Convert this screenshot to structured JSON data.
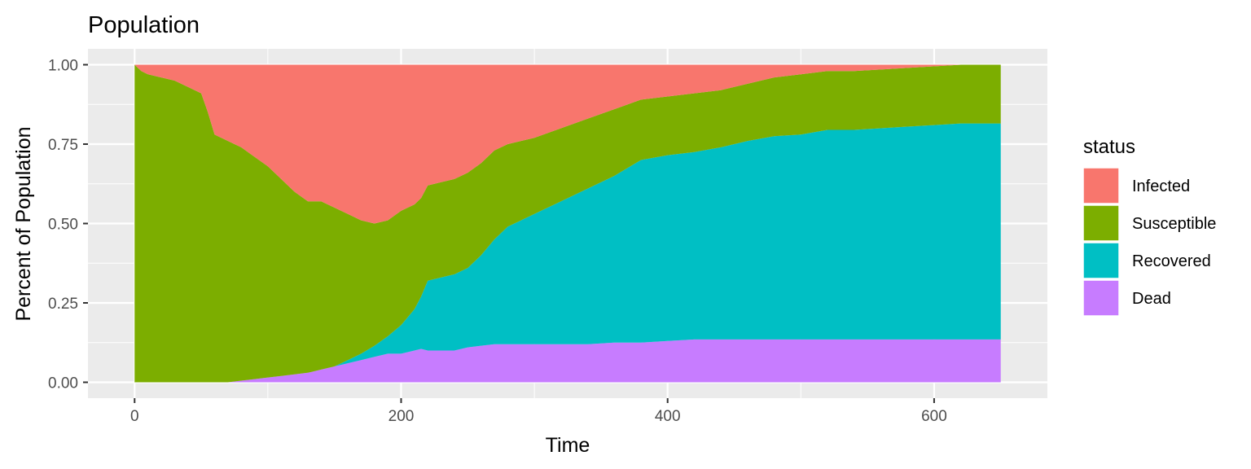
{
  "chart_data": {
    "type": "area",
    "stacked": "fill",
    "title": "Population",
    "xlabel": "Time",
    "ylabel": "Percent of Population",
    "xlim": [
      -35,
      685
    ],
    "ylim": [
      -0.05,
      1.05
    ],
    "x_ticks": [
      0,
      200,
      400,
      600
    ],
    "x_tick_labels": [
      "0",
      "200",
      "400",
      "600"
    ],
    "y_ticks": [
      0,
      0.25,
      0.5,
      0.75,
      1
    ],
    "y_tick_labels": [
      "0.00",
      "0.25",
      "0.50",
      "0.75",
      "1.00"
    ],
    "grid": true,
    "legend": {
      "title": "status",
      "position": "right"
    },
    "stack_order_bottom_to_top": [
      "Dead",
      "Recovered",
      "Susceptible",
      "Infected"
    ],
    "x": [
      0,
      5,
      10,
      20,
      30,
      40,
      50,
      55,
      60,
      70,
      80,
      90,
      100,
      110,
      120,
      130,
      140,
      150,
      160,
      170,
      180,
      190,
      200,
      210,
      215,
      220,
      230,
      240,
      250,
      260,
      270,
      280,
      290,
      300,
      320,
      340,
      360,
      380,
      400,
      420,
      440,
      460,
      480,
      500,
      520,
      540,
      560,
      580,
      600,
      620,
      650
    ],
    "series": [
      {
        "name": "Infected",
        "color": "#F8766D",
        "values": [
          0.0,
          0.02,
          0.03,
          0.04,
          0.05,
          0.07,
          0.09,
          0.15,
          0.22,
          0.24,
          0.26,
          0.29,
          0.32,
          0.36,
          0.4,
          0.43,
          0.43,
          0.45,
          0.47,
          0.49,
          0.5,
          0.49,
          0.46,
          0.44,
          0.42,
          0.38,
          0.37,
          0.36,
          0.34,
          0.31,
          0.27,
          0.25,
          0.24,
          0.23,
          0.2,
          0.17,
          0.14,
          0.11,
          0.1,
          0.09,
          0.08,
          0.06,
          0.04,
          0.03,
          0.02,
          0.02,
          0.015,
          0.01,
          0.005,
          0.0,
          0.0
        ]
      },
      {
        "name": "Susceptible",
        "color": "#7CAE00",
        "values": [
          1.0,
          0.98,
          0.97,
          0.96,
          0.95,
          0.93,
          0.91,
          0.85,
          0.78,
          0.76,
          0.735,
          0.7,
          0.665,
          0.62,
          0.575,
          0.54,
          0.53,
          0.5,
          0.46,
          0.42,
          0.385,
          0.365,
          0.36,
          0.33,
          0.31,
          0.3,
          0.3,
          0.3,
          0.3,
          0.29,
          0.28,
          0.26,
          0.25,
          0.24,
          0.23,
          0.22,
          0.21,
          0.19,
          0.185,
          0.185,
          0.18,
          0.18,
          0.185,
          0.19,
          0.185,
          0.185,
          0.185,
          0.185,
          0.185,
          0.185,
          0.185
        ]
      },
      {
        "name": "Recovered",
        "color": "#00BFC4",
        "values": [
          0.0,
          0.0,
          0.0,
          0.0,
          0.0,
          0.0,
          0.0,
          0.0,
          0.0,
          0.0,
          0.0,
          0.0,
          0.0,
          0.0,
          0.0,
          0.0,
          0.0,
          0.0,
          0.01,
          0.02,
          0.035,
          0.055,
          0.09,
          0.13,
          0.165,
          0.22,
          0.23,
          0.24,
          0.25,
          0.285,
          0.33,
          0.37,
          0.39,
          0.41,
          0.45,
          0.49,
          0.525,
          0.575,
          0.585,
          0.59,
          0.605,
          0.625,
          0.64,
          0.645,
          0.66,
          0.66,
          0.665,
          0.67,
          0.675,
          0.68,
          0.68
        ]
      },
      {
        "name": "Dead",
        "color": "#C77CFF",
        "values": [
          0.0,
          0.0,
          0.0,
          0.0,
          0.0,
          0.0,
          0.0,
          0.0,
          0.0,
          0.0,
          0.005,
          0.01,
          0.015,
          0.02,
          0.025,
          0.03,
          0.04,
          0.05,
          0.06,
          0.07,
          0.08,
          0.09,
          0.09,
          0.1,
          0.105,
          0.1,
          0.1,
          0.1,
          0.11,
          0.115,
          0.12,
          0.12,
          0.12,
          0.12,
          0.12,
          0.12,
          0.125,
          0.125,
          0.13,
          0.135,
          0.135,
          0.135,
          0.135,
          0.135,
          0.135,
          0.135,
          0.135,
          0.135,
          0.135,
          0.135,
          0.135
        ]
      }
    ]
  }
}
